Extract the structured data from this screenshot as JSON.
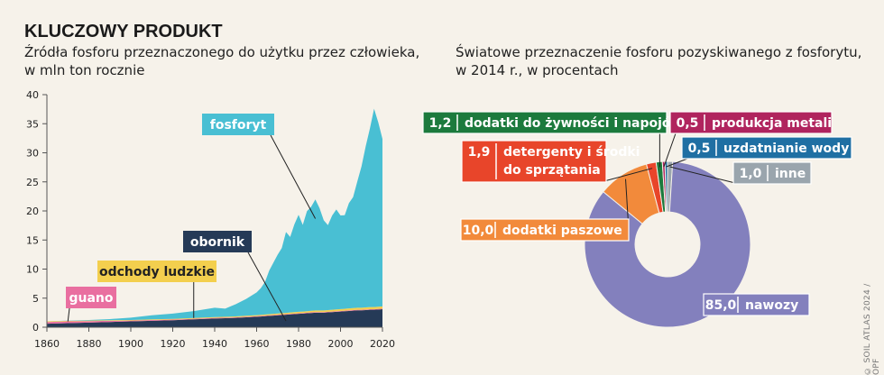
{
  "header": {
    "kicker": "KLUCZOWY PRODUKT",
    "left_subtitle_1": "Źródła fosforu przeznaczonego do użytku przez człowieka,",
    "left_subtitle_2": "w mln ton rocznie",
    "right_subtitle_1": "Światowe przeznaczenie fosforu pozyskiwanego z fosforytu,",
    "right_subtitle_2": "w 2014 r., w procentach"
  },
  "credit": "© SOIL ATLAS 2024 / OPF",
  "chart_data": [
    {
      "type": "area",
      "stacked": true,
      "title": "Źródła fosforu przeznaczonego do użytku przez człowieka, w mln ton rocznie",
      "xlabel": "",
      "ylabel": "",
      "xlim": [
        1860,
        2020
      ],
      "ylim": [
        0,
        40
      ],
      "xticks": [
        1860,
        1880,
        1900,
        1920,
        1940,
        1960,
        1980,
        2000,
        2020
      ],
      "yticks": [
        0,
        5,
        10,
        15,
        20,
        25,
        30,
        35,
        40
      ],
      "x": [
        1860,
        1870,
        1880,
        1890,
        1900,
        1910,
        1920,
        1930,
        1940,
        1945,
        1950,
        1955,
        1960,
        1962,
        1964,
        1966,
        1968,
        1970,
        1972,
        1974,
        1976,
        1978,
        1980,
        1982,
        1984,
        1986,
        1988,
        1990,
        1992,
        1994,
        1996,
        1998,
        2000,
        2002,
        2004,
        2006,
        2008,
        2010,
        2012,
        2014,
        2016,
        2018,
        2020
      ],
      "series": [
        {
          "name": "guano",
          "color": "#e96fa0",
          "values": [
            0.3,
            0.3,
            0.25,
            0.2,
            0.15,
            0.15,
            0.12,
            0.1,
            0.1,
            0.1,
            0.1,
            0.1,
            0.1,
            0.1,
            0.1,
            0.1,
            0.1,
            0.1,
            0.1,
            0.1,
            0.1,
            0.1,
            0.1,
            0.1,
            0.1,
            0.1,
            0.1,
            0.1,
            0.1,
            0.1,
            0.1,
            0.1,
            0.1,
            0.1,
            0.1,
            0.1,
            0.1,
            0.1,
            0.1,
            0.1,
            0.1,
            0.1,
            0.1
          ]
        },
        {
          "name": "obornik",
          "color": "#253a57",
          "values": [
            0.6,
            0.7,
            0.8,
            0.9,
            1.0,
            1.1,
            1.2,
            1.35,
            1.5,
            1.55,
            1.6,
            1.7,
            1.8,
            1.85,
            1.9,
            1.95,
            2.0,
            2.05,
            2.1,
            2.15,
            2.2,
            2.25,
            2.3,
            2.35,
            2.4,
            2.45,
            2.5,
            2.5,
            2.5,
            2.55,
            2.6,
            2.65,
            2.7,
            2.75,
            2.8,
            2.85,
            2.9,
            2.9,
            2.95,
            3.0,
            3.0,
            3.05,
            3.1
          ]
        },
        {
          "name": "odchody ludzkie",
          "color": "#f3cf4e",
          "values": [
            0.1,
            0.1,
            0.1,
            0.1,
            0.1,
            0.1,
            0.12,
            0.13,
            0.15,
            0.15,
            0.16,
            0.17,
            0.18,
            0.18,
            0.19,
            0.2,
            0.2,
            0.21,
            0.22,
            0.22,
            0.23,
            0.24,
            0.25,
            0.25,
            0.26,
            0.27,
            0.28,
            0.28,
            0.29,
            0.3,
            0.3,
            0.31,
            0.32,
            0.32,
            0.33,
            0.34,
            0.35,
            0.35,
            0.36,
            0.37,
            0.37,
            0.38,
            0.38
          ]
        },
        {
          "name": "fosforyt",
          "color": "#49bfd3",
          "values": [
            0.0,
            0.05,
            0.1,
            0.2,
            0.4,
            0.7,
            0.9,
            1.2,
            1.6,
            1.4,
            2.1,
            2.9,
            3.9,
            4.6,
            5.6,
            7.5,
            8.8,
            10.1,
            11.2,
            13.9,
            13.0,
            15.1,
            16.7,
            14.9,
            17.2,
            17.9,
            19.1,
            17.6,
            15.5,
            14.6,
            16.2,
            17.2,
            16.1,
            16.1,
            18.1,
            19.1,
            21.7,
            24.3,
            27.7,
            30.7,
            34.1,
            31.7,
            28.8
          ]
        }
      ]
    },
    {
      "type": "pie",
      "donut": true,
      "title": "Światowe przeznaczenie fosforu pozyskiwanego z fosforytu, w 2014 r., w procentach",
      "slices": [
        {
          "label": "nawozy",
          "value_label": "85,0",
          "value": 85.0,
          "color": "#8380bd"
        },
        {
          "label": "dodatki paszowe",
          "value_label": "10,0",
          "value": 10.0,
          "color": "#f28a3b"
        },
        {
          "label": "detergenty i środki do sprzątania",
          "value_label": "1,9",
          "value": 1.9,
          "color": "#e8452a"
        },
        {
          "label": "dodatki do żywności i napojów",
          "value_label": "1,2",
          "value": 1.2,
          "color": "#1c7a3d"
        },
        {
          "label": "produkcja metali",
          "value_label": "0,5",
          "value": 0.5,
          "color": "#b0245e"
        },
        {
          "label": "uzdatnianie wody",
          "value_label": "0,5",
          "value": 0.5,
          "color": "#1f6fa3"
        },
        {
          "label": "inne",
          "value_label": "1,0",
          "value": 1.0,
          "color": "#9aa5ad"
        }
      ]
    }
  ]
}
